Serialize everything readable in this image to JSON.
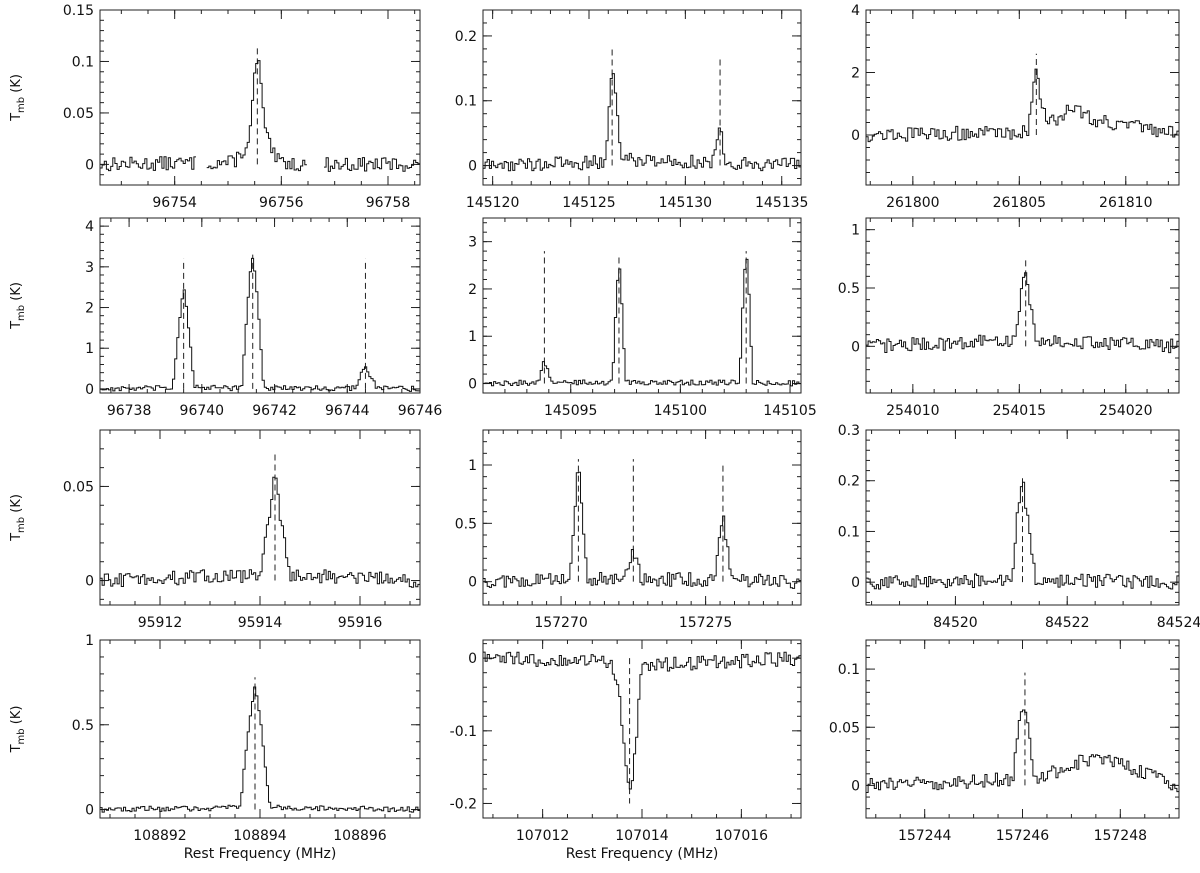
{
  "figure": {
    "ylabel_main": "T",
    "ylabel_sub": "mb",
    "ylabel_unit": " (K)",
    "xlabel": "Rest Frequency (MHz)"
  },
  "chart_data": [
    {
      "type": "line",
      "ylim": [
        -0.02,
        0.15
      ],
      "xlim": [
        96752.6,
        96758.6
      ],
      "xticks": [
        96754,
        96756,
        96758
      ],
      "yticks": [
        0,
        0.05,
        0.1,
        0.15
      ],
      "ytick_labels": [
        "0",
        "0.05",
        "0.1",
        "0.15"
      ],
      "ylabel": "T_mb (K)",
      "lines": [
        {
          "center": 96755.55,
          "top": 0.115
        }
      ],
      "series": [
        {
          "x": [
            96752.6,
            96755.1,
            96755.4,
            96755.5,
            96755.55,
            96755.6,
            96755.7,
            96755.9,
            96756.3,
            96758.6
          ],
          "y": [
            0,
            0.002,
            0.02,
            0.085,
            0.105,
            0.09,
            0.03,
            0.004,
            0,
            0
          ]
        }
      ],
      "gaps": [
        [
          96754.4,
          96754.6
        ],
        [
          96756.5,
          96756.8
        ]
      ]
    },
    {
      "type": "line",
      "ylim": [
        -0.03,
        0.24
      ],
      "xlim": [
        145119.5,
        145136
      ],
      "xticks": [
        145120,
        145125,
        145130,
        145135
      ],
      "yticks": [
        0,
        0.1,
        0.2
      ],
      "ytick_labels": [
        "0",
        "0.1",
        "0.2"
      ],
      "ylabel": "",
      "lines": [
        {
          "center": 145126.2,
          "top": 0.185
        },
        {
          "center": 145131.8,
          "top": 0.165
        }
      ],
      "series": [
        {
          "x": [
            145119.5,
            145125.8,
            145126.0,
            145126.2,
            145126.4,
            145126.7,
            145131.5,
            145131.7,
            145131.8,
            145131.9,
            145132.1,
            145136
          ],
          "y": [
            0,
            0.005,
            0.06,
            0.165,
            0.1,
            0.01,
            0.005,
            0.05,
            0.07,
            0.045,
            0.005,
            0
          ]
        }
      ]
    },
    {
      "type": "line",
      "ylim": [
        -1.6,
        4
      ],
      "xlim": [
        261797.8,
        261812.5
      ],
      "xticks": [
        261800,
        261805,
        261810
      ],
      "yticks": [
        0,
        2,
        4
      ],
      "ytick_labels": [
        "0",
        "2",
        "4"
      ],
      "ylabel": "",
      "lines": [
        {
          "center": 261805.8,
          "top": 2.6
        }
      ],
      "series": [
        {
          "x": [
            261797.8,
            261805.4,
            261805.6,
            261805.8,
            261806.0,
            261806.3,
            261807.5,
            261808.5,
            261812.5
          ],
          "y": [
            0,
            0.1,
            1.2,
            2.1,
            1.3,
            0.3,
            0.9,
            0.5,
            0
          ]
        }
      ]
    },
    {
      "type": "line",
      "ylim": [
        -0.1,
        4.2
      ],
      "xlim": [
        96737.2,
        96746
      ],
      "xticks": [
        96738,
        96740,
        96742,
        96744,
        96746
      ],
      "yticks": [
        0,
        1,
        2,
        3,
        4
      ],
      "ytick_labels": [
        "0",
        "1",
        "2",
        "3",
        "4"
      ],
      "ylabel": "T_mb (K)",
      "lines": [
        {
          "center": 96739.5,
          "top": 3.2
        },
        {
          "center": 96741.4,
          "top": 3.3
        },
        {
          "center": 96744.5,
          "top": 3.2
        }
      ],
      "series": [
        {
          "x": [
            96737.2,
            96739.2,
            96739.4,
            96739.5,
            96739.6,
            96739.8,
            96741.1,
            96741.3,
            96741.4,
            96741.5,
            96741.7,
            96744.2,
            96744.4,
            96744.5,
            96744.6,
            96744.8,
            96746
          ],
          "y": [
            0,
            0.02,
            1.8,
            2.6,
            1.8,
            0.03,
            0.02,
            2.6,
            3.3,
            2.6,
            0.02,
            0.02,
            0.4,
            0.6,
            0.4,
            0.02,
            0
          ]
        }
      ]
    },
    {
      "type": "line",
      "ylim": [
        -0.2,
        3.5
      ],
      "xlim": [
        145091,
        145105.5
      ],
      "xticks": [
        145095,
        145100,
        145105
      ],
      "yticks": [
        0,
        1,
        2,
        3
      ],
      "ytick_labels": [
        "0",
        "1",
        "2",
        "3"
      ],
      "ylabel": "",
      "lines": [
        {
          "center": 145093.8,
          "top": 2.8
        },
        {
          "center": 145097.2,
          "top": 2.7
        },
        {
          "center": 145103.0,
          "top": 2.8
        }
      ],
      "series": [
        {
          "x": [
            145091,
            145093.5,
            145093.7,
            145093.8,
            145093.9,
            145094.1,
            145096.9,
            145097.1,
            145097.2,
            145097.3,
            145097.5,
            145102.7,
            145102.9,
            145103.0,
            145103.1,
            145103.3,
            145105.5
          ],
          "y": [
            0,
            0.02,
            0.35,
            0.48,
            0.35,
            0.02,
            0.02,
            2.0,
            2.6,
            2.0,
            0.02,
            0.02,
            2.2,
            2.85,
            2.2,
            0.02,
            0
          ]
        }
      ]
    },
    {
      "type": "line",
      "ylim": [
        -0.4,
        1.1
      ],
      "xlim": [
        254007.8,
        254022.5
      ],
      "xticks": [
        254010,
        254015,
        254020
      ],
      "yticks": [
        0,
        0.5,
        1
      ],
      "ytick_labels": [
        "0",
        "0.5",
        "1"
      ],
      "ylabel": "",
      "lines": [
        {
          "center": 254015.3,
          "top": 0.75
        }
      ],
      "series": [
        {
          "x": [
            254007.8,
            254014.8,
            254015.0,
            254015.2,
            254015.3,
            254015.5,
            254015.8,
            254022.5
          ],
          "y": [
            0,
            0.05,
            0.3,
            0.6,
            0.65,
            0.4,
            0.05,
            0
          ]
        }
      ]
    },
    {
      "type": "line",
      "ylim": [
        -0.013,
        0.08
      ],
      "xlim": [
        95910.8,
        95917.2
      ],
      "xticks": [
        95912,
        95914,
        95916
      ],
      "yticks": [
        0,
        0.05
      ],
      "ytick_labels": [
        "0",
        "0.05"
      ],
      "ylabel": "T_mb (K)",
      "lines": [
        {
          "center": 95914.3,
          "top": 0.068
        }
      ],
      "series": [
        {
          "x": [
            95910.8,
            95914.0,
            95914.2,
            95914.3,
            95914.4,
            95914.6,
            95917.2
          ],
          "y": [
            0,
            0.003,
            0.035,
            0.057,
            0.035,
            0.003,
            0
          ]
        }
      ]
    },
    {
      "type": "line",
      "ylim": [
        -0.2,
        1.3
      ],
      "xlim": [
        157267.3,
        157278.3
      ],
      "xticks": [
        157270,
        157275
      ],
      "yticks": [
        0,
        0.5,
        1
      ],
      "ytick_labels": [
        "0",
        "0.5",
        "1"
      ],
      "ylabel": "",
      "lines": [
        {
          "center": 157270.6,
          "top": 1.05
        },
        {
          "center": 157272.5,
          "top": 1.05
        },
        {
          "center": 157275.6,
          "top": 1.0
        }
      ],
      "series": [
        {
          "x": [
            157267.3,
            157270.3,
            157270.5,
            157270.6,
            157270.7,
            157270.9,
            157272.2,
            157272.4,
            157272.5,
            157272.6,
            157272.8,
            157275.3,
            157275.5,
            157275.6,
            157275.7,
            157275.9,
            157278.3
          ],
          "y": [
            0,
            0.02,
            0.7,
            1.03,
            0.7,
            0.02,
            0.02,
            0.18,
            0.24,
            0.18,
            0.02,
            0.02,
            0.4,
            0.55,
            0.4,
            0.02,
            0
          ]
        }
      ]
    },
    {
      "type": "line",
      "ylim": [
        -0.045,
        0.3
      ],
      "xlim": [
        84518.4,
        84524
      ],
      "xticks": [
        84520,
        84522,
        84524
      ],
      "yticks": [
        0,
        0.1,
        0.2,
        0.3
      ],
      "ytick_labels": [
        "0",
        "0.1",
        "0.2",
        "0.3"
      ],
      "ylabel": "",
      "lines": [
        {
          "center": 84521.2,
          "top": 0.205
        }
      ],
      "series": [
        {
          "x": [
            84518.4,
            84521.0,
            84521.1,
            84521.2,
            84521.3,
            84521.45,
            84524
          ],
          "y": [
            0,
            0.003,
            0.12,
            0.2,
            0.12,
            0.003,
            0
          ]
        }
      ]
    },
    {
      "type": "line",
      "ylim": [
        -0.05,
        1.0
      ],
      "xlim": [
        108890.8,
        108897.2
      ],
      "xticks": [
        108892,
        108894,
        108896
      ],
      "yticks": [
        0,
        0.5,
        1
      ],
      "ytick_labels": [
        "0",
        "0.5",
        "1"
      ],
      "ylabel": "T_mb (K)",
      "lines": [
        {
          "center": 108893.9,
          "top": 0.78
        }
      ],
      "series": [
        {
          "x": [
            108890.8,
            108893.6,
            108893.8,
            108893.9,
            108894.0,
            108894.2,
            108897.2
          ],
          "y": [
            0,
            0.01,
            0.55,
            0.75,
            0.55,
            0.01,
            0
          ]
        }
      ]
    },
    {
      "type": "line",
      "ylim": [
        -0.22,
        0.025
      ],
      "xlim": [
        107010.8,
        107017.2
      ],
      "xticks": [
        107012,
        107014,
        107016
      ],
      "yticks": [
        0,
        -0.1,
        -0.2
      ],
      "ytick_labels": [
        "0",
        "-0.1",
        "-0.2"
      ],
      "ylabel": "",
      "lines": [
        {
          "center": 107013.75,
          "top": -0.2
        }
      ],
      "series": [
        {
          "x": [
            107010.8,
            107013.4,
            107013.55,
            107013.7,
            107013.75,
            107013.85,
            107014.0,
            107017.2
          ],
          "y": [
            0,
            -0.005,
            -0.06,
            -0.17,
            -0.19,
            -0.14,
            -0.01,
            0
          ]
        }
      ]
    },
    {
      "type": "line",
      "ylim": [
        -0.028,
        0.125
      ],
      "xlim": [
        157242.8,
        157249.2
      ],
      "xticks": [
        157244,
        157246,
        157248
      ],
      "yticks": [
        0,
        0.05,
        0.1
      ],
      "ytick_labels": [
        "0",
        "0.05",
        "0.1"
      ],
      "ylabel": "",
      "lines": [
        {
          "center": 157246.05,
          "top": 0.097
        }
      ],
      "series": [
        {
          "x": [
            157242.8,
            157245.8,
            157245.9,
            157246.0,
            157246.1,
            157246.25,
            157247.5,
            157249.2
          ],
          "y": [
            0,
            0.005,
            0.045,
            0.07,
            0.05,
            0.005,
            0.025,
            0
          ]
        }
      ]
    }
  ]
}
